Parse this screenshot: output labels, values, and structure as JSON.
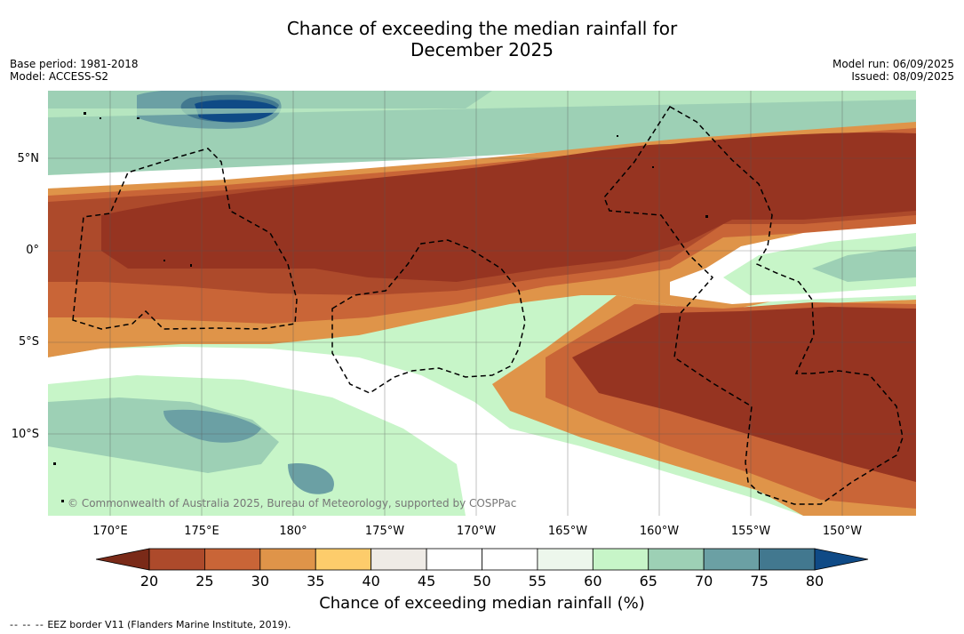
{
  "title_line1": "Chance of exceeding the median rainfall for",
  "title_line2": "December 2025",
  "meta_left": {
    "base_period": "Base period: 1981-2018",
    "model": "Model: ACCESS-S2"
  },
  "meta_right": {
    "model_run": "Model run: 06/09/2025",
    "issued": "Issued: 08/09/2025"
  },
  "copyright": "© Commonwealth of Australia 2025, Bureau of Meteorology, supported by COSPPac",
  "lon_labels": [
    "170°E",
    "175°E",
    "180°",
    "175°W",
    "170°W",
    "165°W",
    "160°W",
    "155°W",
    "150°W"
  ],
  "lat_labels": [
    "5°N",
    "0°",
    "5°S",
    "10°S"
  ],
  "colorbar": {
    "ticks": [
      "20",
      "25",
      "30",
      "35",
      "40",
      "45",
      "50",
      "55",
      "60",
      "65",
      "70",
      "75",
      "80"
    ],
    "under_color": "#7a2a18",
    "over_color": "#0f4a86",
    "colors": [
      "#ad4a2b",
      "#c96537",
      "#df9449",
      "#fdcc6b",
      "#efebe6",
      "#ffffff",
      "#ffffff",
      "#edf7ec",
      "#c7f5c8",
      "#9dd0b5",
      "#6ba0a4",
      "#42788f"
    ],
    "label": "Chance of exceeding median rainfall (%)"
  },
  "footer": {
    "dashes": "-- -- --",
    "text": "EEZ border V11 (Flanders Marine Institute, 2019)."
  }
}
